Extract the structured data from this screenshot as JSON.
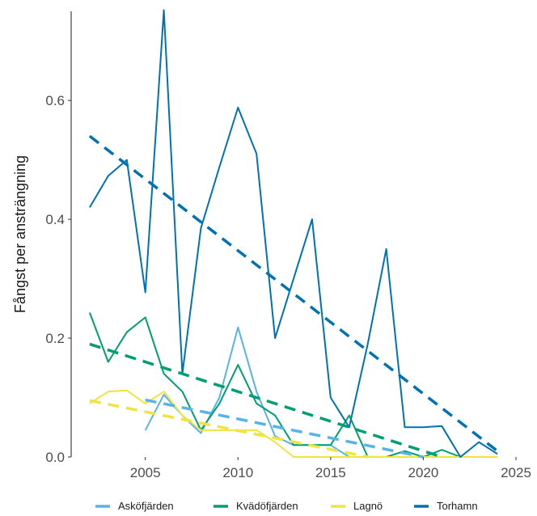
{
  "chart_data": {
    "type": "line",
    "title": "",
    "xlabel": "",
    "ylabel": "Fångst per ansträngning",
    "xlim": [
      2001,
      2025
    ],
    "ylim": [
      0,
      0.75
    ],
    "x_ticks": [
      2005,
      2010,
      2015,
      2020,
      2025
    ],
    "y_ticks": [
      0.0,
      0.2,
      0.4,
      0.6
    ],
    "y_tick_labels": [
      "0.0",
      "0.2",
      "0.4",
      "0.6"
    ],
    "grid": false,
    "legend_position": "bottom",
    "series": [
      {
        "name": "Asköfjärden",
        "color": "#56B4E9",
        "points": [
          [
            2005,
            0.045
          ],
          [
            2006,
            0.105
          ],
          [
            2007,
            0.07
          ],
          [
            2008,
            0.04
          ],
          [
            2009,
            0.1
          ],
          [
            2010,
            0.218
          ],
          [
            2011,
            0.11
          ],
          [
            2012,
            0.035
          ],
          [
            2013,
            0.02
          ],
          [
            2014,
            0.02
          ],
          [
            2015,
            0.02
          ],
          [
            2016,
            0.0
          ]
        ],
        "trend": [
          [
            2005,
            0.096
          ],
          [
            2020,
            0.0
          ]
        ]
      },
      {
        "name": "Kvädöfjärden",
        "color": "#009E73",
        "points": [
          [
            2002,
            0.243
          ],
          [
            2003,
            0.16
          ],
          [
            2004,
            0.21
          ],
          [
            2005,
            0.235
          ],
          [
            2006,
            0.14
          ],
          [
            2007,
            0.11
          ],
          [
            2008,
            0.045
          ],
          [
            2009,
            0.09
          ],
          [
            2010,
            0.155
          ],
          [
            2011,
            0.09
          ],
          [
            2012,
            0.07
          ],
          [
            2013,
            0.02
          ],
          [
            2014,
            0.02
          ],
          [
            2015,
            0.02
          ],
          [
            2016,
            0.07
          ],
          [
            2017,
            0.0
          ],
          [
            2018,
            0.0
          ],
          [
            2019,
            0.01
          ],
          [
            2020,
            0.0
          ],
          [
            2021,
            0.012
          ],
          [
            2022,
            0.0
          ],
          [
            2023,
            0.0
          ]
        ],
        "trend": [
          [
            2002,
            0.19
          ],
          [
            2021,
            0.0
          ]
        ]
      },
      {
        "name": "Lagnö",
        "color": "#F0E442",
        "points": [
          [
            2002,
            0.09
          ],
          [
            2003,
            0.11
          ],
          [
            2004,
            0.112
          ],
          [
            2005,
            0.09
          ],
          [
            2006,
            0.11
          ],
          [
            2007,
            0.07
          ],
          [
            2008,
            0.045
          ],
          [
            2009,
            0.045
          ],
          [
            2010,
            0.045
          ],
          [
            2011,
            0.045
          ],
          [
            2012,
            0.025
          ],
          [
            2013,
            0.0
          ],
          [
            2014,
            0.0
          ],
          [
            2015,
            0.0
          ],
          [
            2016,
            0.0
          ],
          [
            2017,
            0.0
          ],
          [
            2018,
            0.0
          ],
          [
            2019,
            0.0
          ],
          [
            2020,
            0.0
          ],
          [
            2021,
            0.0
          ],
          [
            2022,
            0.0
          ],
          [
            2023,
            0.0
          ],
          [
            2024,
            0.0
          ]
        ],
        "trend": [
          [
            2002,
            0.095
          ],
          [
            2017,
            0.0
          ]
        ]
      },
      {
        "name": "Torhamn",
        "color": "#0072B2",
        "points": [
          [
            2002,
            0.42
          ],
          [
            2003,
            0.473
          ],
          [
            2004,
            0.5
          ],
          [
            2005,
            0.277
          ],
          [
            2006,
            0.752
          ],
          [
            2007,
            0.14
          ],
          [
            2008,
            0.385
          ],
          [
            2009,
            0.488
          ],
          [
            2010,
            0.588
          ],
          [
            2011,
            0.51
          ],
          [
            2012,
            0.2
          ],
          [
            2013,
            0.3
          ],
          [
            2014,
            0.4
          ],
          [
            2015,
            0.1
          ],
          [
            2016,
            0.05
          ],
          [
            2017,
            0.19
          ],
          [
            2018,
            0.35
          ],
          [
            2019,
            0.05
          ],
          [
            2020,
            0.05
          ],
          [
            2021,
            0.052
          ],
          [
            2022,
            0.0
          ],
          [
            2023,
            0.025
          ],
          [
            2024,
            0.005
          ]
        ],
        "trend": [
          [
            2002,
            0.54
          ],
          [
            2024,
            0.01
          ]
        ]
      }
    ]
  }
}
